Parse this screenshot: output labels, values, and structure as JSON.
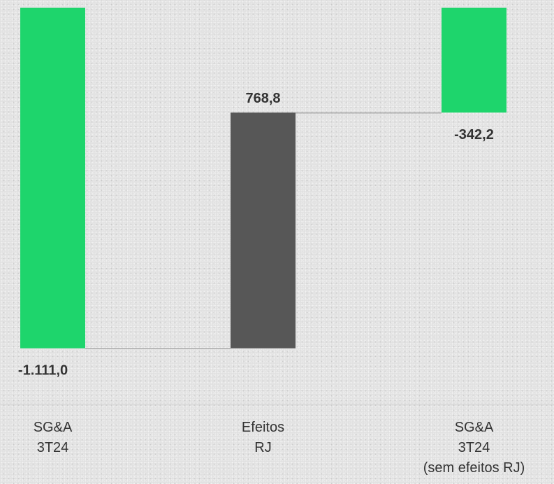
{
  "chart_data": {
    "type": "bar",
    "subtype": "waterfall",
    "categories": [
      [
        "SG&A",
        "3T24"
      ],
      [
        "Efeitos",
        "RJ"
      ],
      [
        "SG&A",
        "3T24",
        "(sem efeitos RJ)"
      ]
    ],
    "values": [
      -1111.0,
      768.8,
      -342.2
    ],
    "value_labels": [
      "-1.111,0",
      "768,8",
      "-342,2"
    ],
    "bar_roles": [
      "total",
      "delta",
      "total"
    ],
    "ylim": [
      -1130,
      0
    ],
    "colors": {
      "total": "#1ed56c",
      "delta": "#575757",
      "connector": "#a9a9a9",
      "axis": "#cfcfcf",
      "text": "#333333"
    },
    "grid": false,
    "legend": "none"
  }
}
